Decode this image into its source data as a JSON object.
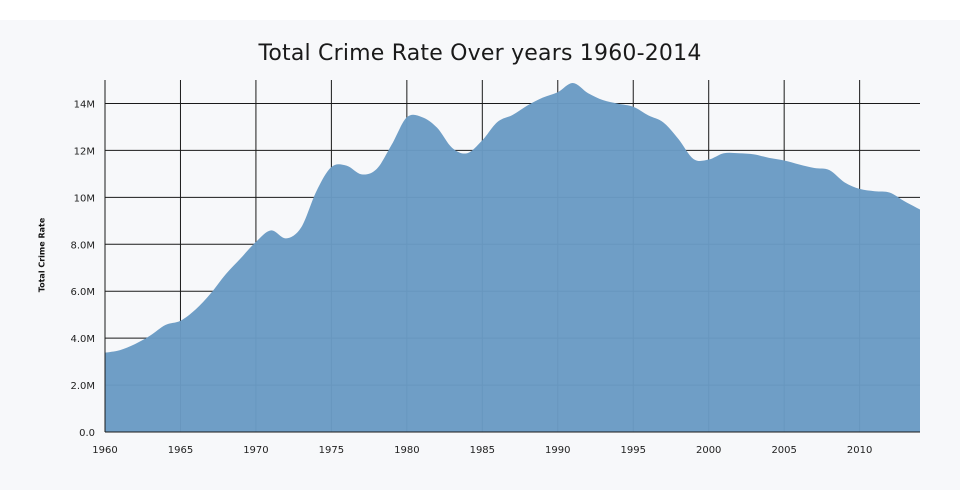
{
  "chart_data": {
    "type": "area",
    "title": "Total Crime Rate Over years 1960-2014",
    "xlabel": "",
    "ylabel": "Total Crime Rate",
    "xlim": [
      1960,
      2014
    ],
    "ylim": [
      0,
      15000000
    ],
    "grid": true,
    "legend": "none",
    "x_ticks": [
      1960,
      1965,
      1970,
      1975,
      1980,
      1985,
      1990,
      1995,
      2000,
      2005,
      2010
    ],
    "x_tick_labels": [
      "1960",
      "1965",
      "1970",
      "1975",
      "1980",
      "1985",
      "1990",
      "1995",
      "2000",
      "2005",
      "2010"
    ],
    "y_ticks": [
      0,
      2000000,
      4000000,
      6000000,
      8000000,
      10000000,
      12000000,
      14000000
    ],
    "y_tick_labels": [
      "0.0",
      "2.0M",
      "4.0M",
      "6.0M",
      "8.0M",
      "10M",
      "12M",
      "14M"
    ],
    "series": [
      {
        "color": "#6a9bc4",
        "x": [
          1960,
          1961,
          1962,
          1963,
          1964,
          1965,
          1966,
          1967,
          1968,
          1969,
          1970,
          1971,
          1972,
          1973,
          1974,
          1975,
          1976,
          1977,
          1978,
          1979,
          1980,
          1981,
          1982,
          1983,
          1984,
          1985,
          1986,
          1987,
          1988,
          1989,
          1990,
          1991,
          1992,
          1993,
          1994,
          1995,
          1996,
          1997,
          1998,
          1999,
          2000,
          2001,
          2002,
          2003,
          2004,
          2005,
          2006,
          2007,
          2008,
          2009,
          2010,
          2011,
          2012,
          2013,
          2014
        ],
        "values": [
          3380000,
          3490000,
          3750000,
          4110000,
          4560000,
          4740000,
          5220000,
          5900000,
          6720000,
          7410000,
          8100000,
          8590000,
          8250000,
          8720000,
          10250000,
          11290000,
          11350000,
          10980000,
          11210000,
          12250000,
          13410000,
          13420000,
          12970000,
          12110000,
          11880000,
          12430000,
          13210000,
          13510000,
          13920000,
          14250000,
          14480000,
          14870000,
          14440000,
          14140000,
          13990000,
          13860000,
          13490000,
          13190000,
          12480000,
          11630000,
          11610000,
          11880000,
          11880000,
          11830000,
          11680000,
          11570000,
          11400000,
          11250000,
          11160000,
          10640000,
          10360000,
          10260000,
          10200000,
          9820000,
          9480000
        ]
      }
    ]
  }
}
